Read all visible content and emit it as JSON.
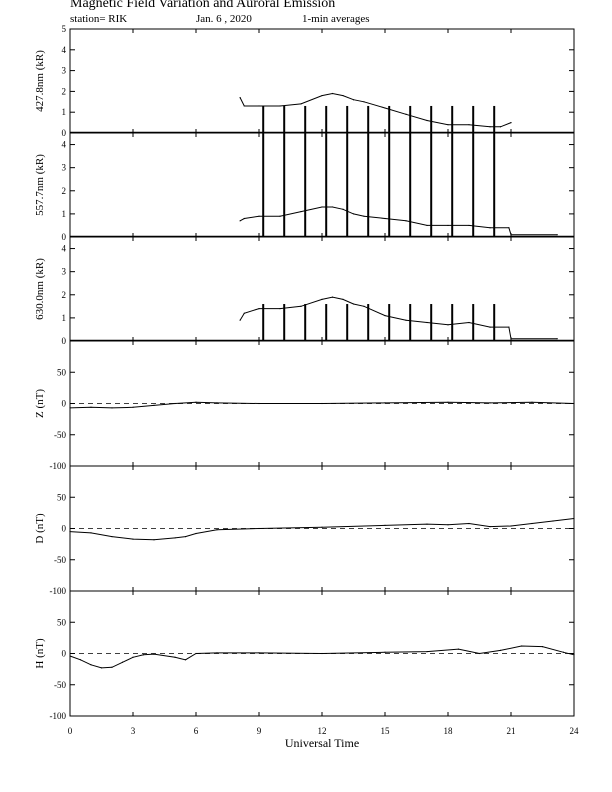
{
  "header": {
    "title": "Magnetic Field Variation and Auroral Emission",
    "station": "station= RIK",
    "date": "Jan. 6 , 2020",
    "averaging": "1-min averages"
  },
  "chart_data": [
    {
      "type": "line",
      "ylabel": "427.8nm (kR)",
      "ylim": [
        0,
        5
      ],
      "yticks": [
        0,
        1,
        2,
        3,
        4,
        5
      ],
      "show_zero_dashed": false,
      "series": [
        {
          "x": [
            8.1,
            8.3,
            9,
            10,
            11,
            12,
            12.5,
            13,
            13.5,
            14,
            15,
            16,
            17,
            18,
            19,
            20,
            20.5,
            21
          ],
          "values": [
            1.7,
            1.3,
            1.3,
            1.3,
            1.4,
            1.8,
            1.9,
            1.8,
            1.6,
            1.5,
            1.2,
            0.9,
            0.6,
            0.4,
            0.4,
            0.3,
            0.3,
            0.5
          ]
        }
      ],
      "spikes": {
        "x": [
          9.2,
          10.2,
          11.2,
          12.2,
          13.2,
          14.2,
          15.2,
          16.2,
          17.2,
          18.2,
          19.2,
          20.2
        ],
        "top": 1.3
      }
    },
    {
      "type": "line",
      "ylabel": "557.7nm (kR)",
      "ylim": [
        0,
        4.5
      ],
      "yticks": [
        0,
        1,
        2,
        3,
        4
      ],
      "show_zero_dashed": false,
      "series": [
        {
          "x": [
            8.1,
            8.3,
            9,
            10,
            11,
            12,
            12.5,
            13,
            13.5,
            14,
            15,
            16,
            17,
            18,
            19,
            20,
            20.9,
            21,
            23.2
          ],
          "values": [
            0.7,
            0.8,
            0.9,
            0.9,
            1.1,
            1.3,
            1.3,
            1.2,
            1.0,
            0.9,
            0.8,
            0.7,
            0.5,
            0.5,
            0.5,
            0.4,
            0.4,
            0.1,
            0.1
          ]
        }
      ],
      "spikes": {
        "x": [
          9.2,
          10.2,
          11.2,
          12.2,
          13.2,
          14.2,
          15.2,
          16.2,
          17.2,
          18.2,
          19.2,
          20.2
        ],
        "top": 4.5
      }
    },
    {
      "type": "line",
      "ylabel": "630.0nm (kR)",
      "ylim": [
        0,
        4.5
      ],
      "yticks": [
        0,
        1,
        2,
        3,
        4
      ],
      "show_zero_dashed": false,
      "series": [
        {
          "x": [
            8.1,
            8.3,
            9,
            10,
            11,
            12,
            12.5,
            13,
            13.5,
            14,
            15,
            16,
            17,
            18,
            19,
            20,
            20.9,
            21,
            23.2
          ],
          "values": [
            0.9,
            1.2,
            1.4,
            1.4,
            1.5,
            1.8,
            1.9,
            1.8,
            1.6,
            1.5,
            1.1,
            0.9,
            0.8,
            0.7,
            0.8,
            0.6,
            0.6,
            0.1,
            0.1
          ]
        }
      ],
      "spikes": {
        "x": [
          9.2,
          10.2,
          11.2,
          12.2,
          13.2,
          14.2,
          15.2,
          16.2,
          17.2,
          18.2,
          19.2,
          20.2
        ],
        "top": 1.6
      }
    },
    {
      "type": "line",
      "ylabel": "Z (nT)",
      "ylim": [
        -100,
        100
      ],
      "yticks": [
        -100,
        -50,
        0,
        50
      ],
      "show_zero_dashed": true,
      "series": [
        {
          "x": [
            0,
            1,
            2,
            3,
            4,
            5,
            6,
            7,
            9,
            12,
            15,
            18,
            20,
            22,
            24
          ],
          "values": [
            -7,
            -6,
            -7,
            -6,
            -3,
            0,
            2,
            1,
            0,
            0,
            1,
            2,
            1,
            2,
            0
          ]
        }
      ]
    },
    {
      "type": "line",
      "ylabel": "D (nT)",
      "ylim": [
        -100,
        100
      ],
      "yticks": [
        -100,
        -50,
        0,
        50
      ],
      "show_zero_dashed": true,
      "series": [
        {
          "x": [
            0,
            1,
            2,
            3,
            4,
            5,
            5.5,
            6,
            7,
            9,
            12,
            15,
            17,
            18,
            19,
            20,
            21,
            22,
            23,
            24
          ],
          "values": [
            -5,
            -7,
            -13,
            -17,
            -18,
            -15,
            -13,
            -8,
            -2,
            0,
            2,
            5,
            7,
            6,
            8,
            3,
            4,
            8,
            12,
            16
          ]
        }
      ]
    },
    {
      "type": "line",
      "ylabel": "H (nT)",
      "ylim": [
        -100,
        100
      ],
      "yticks": [
        -100,
        -50,
        0,
        50
      ],
      "show_zero_dashed": true,
      "series": [
        {
          "x": [
            0,
            0.5,
            1,
            1.5,
            2,
            2.5,
            3,
            3.5,
            4,
            5,
            5.5,
            6,
            7,
            9,
            12,
            15,
            17,
            18.5,
            19.5,
            20.5,
            21.5,
            22.5,
            23.5,
            24
          ],
          "values": [
            -4,
            -10,
            -18,
            -23,
            -22,
            -14,
            -6,
            -2,
            -1,
            -6,
            -10,
            0,
            1,
            1,
            0,
            2,
            3,
            7,
            0,
            5,
            12,
            11,
            2,
            -2
          ]
        }
      ]
    }
  ],
  "x_axis": {
    "label": "Universal Time",
    "ticks": [
      "0",
      "3",
      "6",
      "9",
      "12",
      "15",
      "18",
      "21",
      "24"
    ],
    "range": [
      0,
      24
    ]
  }
}
